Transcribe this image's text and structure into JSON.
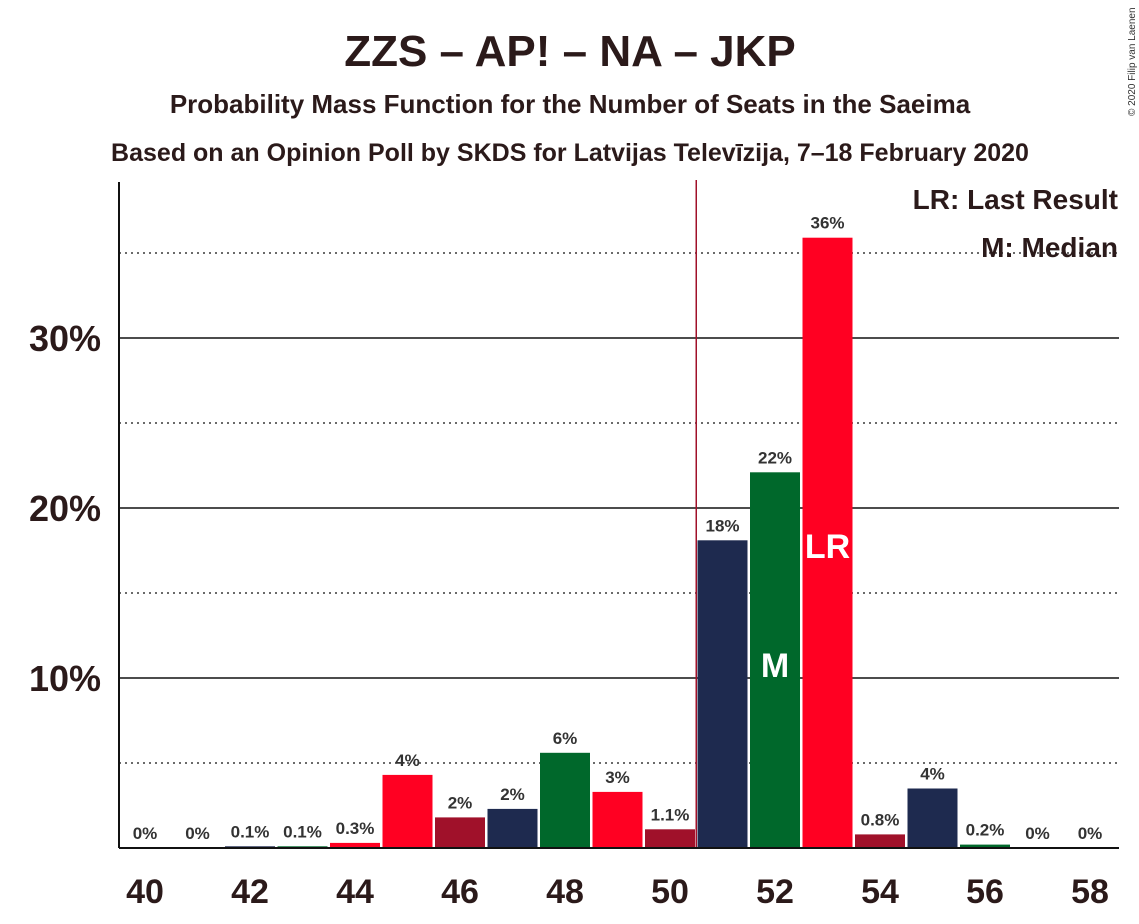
{
  "chart_data": {
    "type": "bar",
    "title": "ZZS – AP! – NA – JKP",
    "subtitle": "Probability Mass Function for the Number of Seats in the Saeima",
    "subtitle2": "Based on an Opinion Poll by SKDS for Latvijas Televīzija, 7–18 February 2020",
    "copyright": "© 2020 Filip van Laenen",
    "categories": [
      40,
      41,
      42,
      43,
      44,
      45,
      46,
      47,
      48,
      49,
      50,
      51,
      52,
      53,
      54,
      55,
      56,
      57,
      58
    ],
    "values": [
      0,
      0,
      0.1,
      0.1,
      0.3,
      4.3,
      1.8,
      2.3,
      5.6,
      3.3,
      1.1,
      18.1,
      22.1,
      35.9,
      0.8,
      3.5,
      0.2,
      0,
      0
    ],
    "labels": [
      "0%",
      "0%",
      "0.1%",
      "0.1%",
      "0.3%",
      "4%",
      "2%",
      "2%",
      "6%",
      "3%",
      "1.1%",
      "18%",
      "22%",
      "36%",
      "0.8%",
      "4%",
      "0.2%",
      "0%",
      "0%"
    ],
    "colors": [
      "#ff0022",
      "#a0112a",
      "#1e2a4f",
      "#00682b",
      "#ff0022",
      "#ff0022",
      "#a0112a",
      "#1e2a4f",
      "#00682b",
      "#ff0022",
      "#a0112a",
      "#1e2a4f",
      "#00682b",
      "#ff0022",
      "#a0112a",
      "#1e2a4f",
      "#00682b",
      "#ff0022",
      "#a0112a"
    ],
    "xtick_labels": [
      "40",
      "42",
      "44",
      "46",
      "48",
      "50",
      "52",
      "54",
      "56",
      "58"
    ],
    "ytick_labels": [
      "10%",
      "20%",
      "30%"
    ],
    "ylim": [
      0,
      39
    ],
    "majority_line_x": 50.5,
    "median_seat": 52,
    "median_label": "M",
    "last_result_seat": 53,
    "last_result_label": "LR",
    "legend": [
      "LR: Last Result",
      "M: Median"
    ],
    "grid": "major solid at 10% steps, dotted at 5% offsets"
  }
}
